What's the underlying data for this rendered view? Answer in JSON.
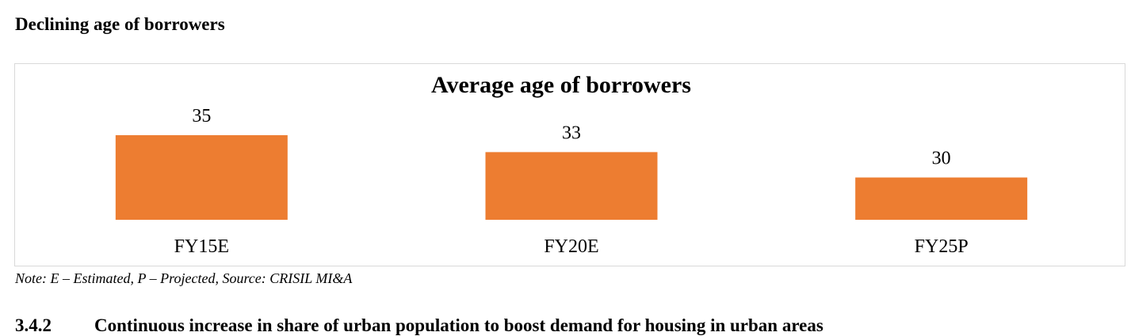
{
  "page": {
    "heading": "Declining age of borrowers",
    "note": "Note: E – Estimated, P – Projected, Source: CRISIL MI&A",
    "section_number": "3.4.2",
    "section_title": "Continuous increase in share of urban population to boost demand for housing in urban areas"
  },
  "colors": {
    "bar": "#ED7D31",
    "text": "#000000",
    "border": "#D9D9D9"
  },
  "chart_data": {
    "type": "bar",
    "title": "Average age of borrowers",
    "categories": [
      "FY15E",
      "FY20E",
      "FY25P"
    ],
    "values": [
      35,
      33,
      30
    ],
    "data_labels": [
      "35",
      "33",
      "30"
    ],
    "xlabel": "",
    "ylabel": "",
    "ylim": [
      25,
      35
    ],
    "grid": false,
    "legend": "none"
  }
}
